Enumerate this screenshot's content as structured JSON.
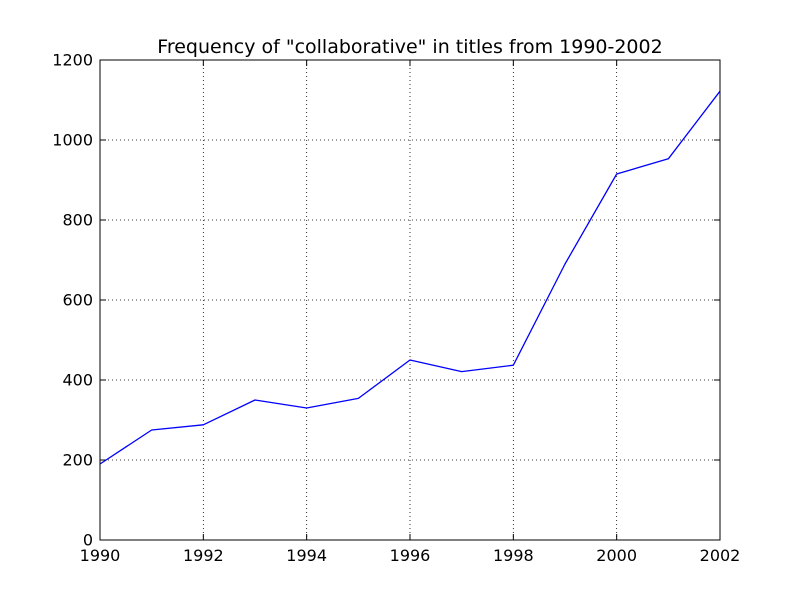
{
  "chart_data": {
    "type": "line",
    "title": "Frequency of \"collaborative\" in titles from 1990-2002",
    "xlabel": "",
    "ylabel": "",
    "xlim": [
      1990,
      2002
    ],
    "ylim": [
      0,
      1200
    ],
    "grid": true,
    "x_ticks": [
      1990,
      1992,
      1994,
      1996,
      1998,
      2000,
      2002
    ],
    "y_ticks": [
      0,
      200,
      400,
      600,
      800,
      1000,
      1200
    ],
    "line_color": "#0000ff",
    "series": [
      {
        "x": [
          1990,
          1991,
          1992,
          1993,
          1994,
          1995,
          1996,
          1997,
          1998,
          1999,
          2000,
          2001,
          2002
        ],
        "values": [
          190,
          275,
          288,
          350,
          330,
          354,
          450,
          421,
          437,
          690,
          915,
          953,
          1122
        ]
      }
    ]
  }
}
